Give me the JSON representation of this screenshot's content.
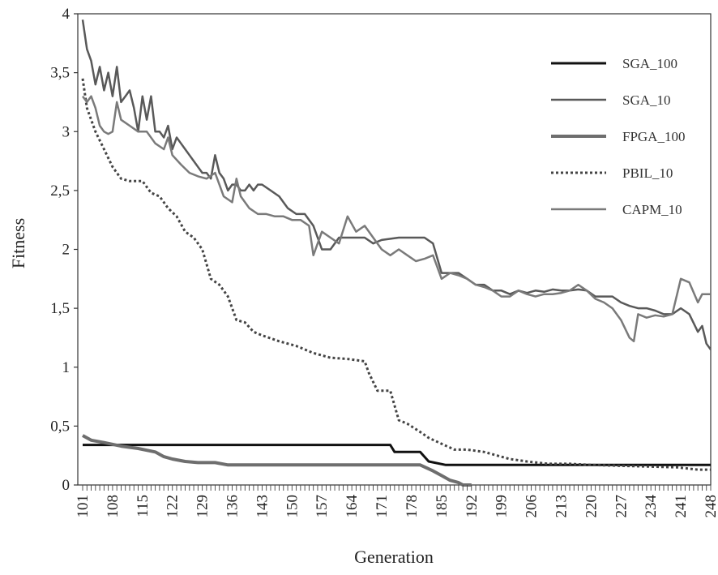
{
  "chart_data": {
    "type": "line",
    "xlabel": "Generation",
    "ylabel": "Fitness",
    "xlim": [
      101,
      248
    ],
    "ylim": [
      0,
      4
    ],
    "y_ticks": [
      0,
      0.5,
      1,
      1.5,
      2,
      2.5,
      3,
      3.5,
      4
    ],
    "y_tick_labels": [
      "0",
      "0,5",
      "1",
      "1,5",
      "2",
      "2,5",
      "3",
      "3,5",
      "4"
    ],
    "x_tick_labels": [
      "101",
      "108",
      "115",
      "122",
      "129",
      "136",
      "143",
      "150",
      "157",
      "164",
      "171",
      "178",
      "185",
      "192",
      "199",
      "206",
      "213",
      "220",
      "227",
      "234",
      "241",
      "248"
    ],
    "legend_position": "top-right",
    "grid": false,
    "series": [
      {
        "name": "SGA_100",
        "color": "#111111",
        "style": "solid",
        "width": 3,
        "points": [
          [
            101,
            0.34
          ],
          [
            173,
            0.34
          ],
          [
            174,
            0.28
          ],
          [
            180,
            0.28
          ],
          [
            182,
            0.2
          ],
          [
            186,
            0.17
          ],
          [
            191,
            0.17
          ],
          [
            248,
            0.17
          ]
        ]
      },
      {
        "name": "SGA_10",
        "color": "#595959",
        "style": "solid",
        "width": 2.5,
        "points": [
          [
            101,
            3.95
          ],
          [
            102,
            3.7
          ],
          [
            103,
            3.6
          ],
          [
            104,
            3.4
          ],
          [
            105,
            3.55
          ],
          [
            106,
            3.35
          ],
          [
            107,
            3.5
          ],
          [
            108,
            3.3
          ],
          [
            109,
            3.55
          ],
          [
            110,
            3.25
          ],
          [
            111,
            3.3
          ],
          [
            112,
            3.35
          ],
          [
            113,
            3.2
          ],
          [
            114,
            3.0
          ],
          [
            115,
            3.3
          ],
          [
            116,
            3.1
          ],
          [
            117,
            3.3
          ],
          [
            118,
            3.0
          ],
          [
            119,
            3.0
          ],
          [
            120,
            2.95
          ],
          [
            121,
            3.05
          ],
          [
            122,
            2.85
          ],
          [
            123,
            2.95
          ],
          [
            124,
            2.9
          ],
          [
            125,
            2.85
          ],
          [
            126,
            2.8
          ],
          [
            127,
            2.75
          ],
          [
            128,
            2.7
          ],
          [
            129,
            2.65
          ],
          [
            130,
            2.65
          ],
          [
            131,
            2.6
          ],
          [
            132,
            2.8
          ],
          [
            133,
            2.65
          ],
          [
            134,
            2.6
          ],
          [
            135,
            2.5
          ],
          [
            136,
            2.55
          ],
          [
            137,
            2.55
          ],
          [
            138,
            2.5
          ],
          [
            139,
            2.5
          ],
          [
            140,
            2.55
          ],
          [
            141,
            2.5
          ],
          [
            142,
            2.55
          ],
          [
            143,
            2.55
          ],
          [
            145,
            2.5
          ],
          [
            147,
            2.45
          ],
          [
            149,
            2.35
          ],
          [
            151,
            2.3
          ],
          [
            153,
            2.3
          ],
          [
            155,
            2.2
          ],
          [
            156,
            2.1
          ],
          [
            157,
            2.0
          ],
          [
            159,
            2.0
          ],
          [
            161,
            2.1
          ],
          [
            163,
            2.1
          ],
          [
            165,
            2.1
          ],
          [
            167,
            2.1
          ],
          [
            169,
            2.05
          ],
          [
            171,
            2.08
          ],
          [
            175,
            2.1
          ],
          [
            177,
            2.1
          ],
          [
            179,
            2.1
          ],
          [
            181,
            2.1
          ],
          [
            183,
            2.05
          ],
          [
            185,
            1.8
          ],
          [
            187,
            1.8
          ],
          [
            189,
            1.8
          ],
          [
            191,
            1.75
          ],
          [
            193,
            1.7
          ],
          [
            195,
            1.7
          ],
          [
            197,
            1.65
          ],
          [
            199,
            1.65
          ],
          [
            201,
            1.62
          ],
          [
            203,
            1.65
          ],
          [
            205,
            1.63
          ],
          [
            207,
            1.65
          ],
          [
            209,
            1.64
          ],
          [
            211,
            1.66
          ],
          [
            213,
            1.65
          ],
          [
            215,
            1.65
          ],
          [
            217,
            1.66
          ],
          [
            219,
            1.65
          ],
          [
            221,
            1.6
          ],
          [
            223,
            1.6
          ],
          [
            225,
            1.6
          ],
          [
            227,
            1.55
          ],
          [
            229,
            1.52
          ],
          [
            231,
            1.5
          ],
          [
            233,
            1.5
          ],
          [
            235,
            1.48
          ],
          [
            237,
            1.45
          ],
          [
            239,
            1.45
          ],
          [
            241,
            1.5
          ],
          [
            243,
            1.45
          ],
          [
            245,
            1.3
          ],
          [
            246,
            1.35
          ],
          [
            247,
            1.2
          ],
          [
            248,
            1.15
          ]
        ]
      },
      {
        "name": "FPGA_100",
        "color": "#6e6e6e",
        "style": "solid",
        "width": 4,
        "points": [
          [
            101,
            0.42
          ],
          [
            103,
            0.38
          ],
          [
            106,
            0.36
          ],
          [
            110,
            0.33
          ],
          [
            114,
            0.31
          ],
          [
            118,
            0.28
          ],
          [
            120,
            0.24
          ],
          [
            122,
            0.22
          ],
          [
            125,
            0.2
          ],
          [
            128,
            0.19
          ],
          [
            132,
            0.19
          ],
          [
            135,
            0.17
          ],
          [
            137,
            0.17
          ],
          [
            140,
            0.17
          ],
          [
            160,
            0.17
          ],
          [
            180,
            0.17
          ],
          [
            183,
            0.12
          ],
          [
            185,
            0.08
          ],
          [
            187,
            0.04
          ],
          [
            189,
            0.02
          ],
          [
            190,
            0.0
          ],
          [
            192,
            0.0
          ]
        ]
      },
      {
        "name": "PBIL_10",
        "color": "#444444",
        "style": "dotted",
        "width": 3,
        "points": [
          [
            101,
            3.45
          ],
          [
            102,
            3.2
          ],
          [
            104,
            3.0
          ],
          [
            106,
            2.85
          ],
          [
            108,
            2.7
          ],
          [
            110,
            2.6
          ],
          [
            112,
            2.58
          ],
          [
            115,
            2.58
          ],
          [
            117,
            2.48
          ],
          [
            119,
            2.45
          ],
          [
            121,
            2.35
          ],
          [
            123,
            2.28
          ],
          [
            125,
            2.15
          ],
          [
            127,
            2.1
          ],
          [
            129,
            2.0
          ],
          [
            131,
            1.75
          ],
          [
            133,
            1.7
          ],
          [
            135,
            1.6
          ],
          [
            137,
            1.4
          ],
          [
            139,
            1.38
          ],
          [
            141,
            1.3
          ],
          [
            143,
            1.27
          ],
          [
            147,
            1.22
          ],
          [
            151,
            1.18
          ],
          [
            155,
            1.12
          ],
          [
            159,
            1.08
          ],
          [
            163,
            1.07
          ],
          [
            167,
            1.05
          ],
          [
            168,
            0.95
          ],
          [
            170,
            0.8
          ],
          [
            173,
            0.8
          ],
          [
            175,
            0.55
          ],
          [
            177,
            0.52
          ],
          [
            180,
            0.45
          ],
          [
            182,
            0.4
          ],
          [
            185,
            0.35
          ],
          [
            188,
            0.3
          ],
          [
            191,
            0.3
          ],
          [
            195,
            0.28
          ],
          [
            198,
            0.25
          ],
          [
            201,
            0.22
          ],
          [
            205,
            0.2
          ],
          [
            210,
            0.18
          ],
          [
            215,
            0.18
          ],
          [
            220,
            0.17
          ],
          [
            230,
            0.16
          ],
          [
            240,
            0.15
          ],
          [
            245,
            0.13
          ],
          [
            248,
            0.13
          ]
        ]
      },
      {
        "name": "CAPM_10",
        "color": "#7a7a7a",
        "style": "solid",
        "width": 2.5,
        "points": [
          [
            101,
            3.3
          ],
          [
            102,
            3.25
          ],
          [
            103,
            3.3
          ],
          [
            104,
            3.2
          ],
          [
            105,
            3.05
          ],
          [
            106,
            3.0
          ],
          [
            107,
            2.98
          ],
          [
            108,
            3.0
          ],
          [
            109,
            3.25
          ],
          [
            110,
            3.1
          ],
          [
            112,
            3.05
          ],
          [
            114,
            3.0
          ],
          [
            116,
            3.0
          ],
          [
            118,
            2.9
          ],
          [
            120,
            2.85
          ],
          [
            121,
            2.95
          ],
          [
            122,
            2.8
          ],
          [
            124,
            2.72
          ],
          [
            126,
            2.65
          ],
          [
            128,
            2.62
          ],
          [
            130,
            2.6
          ],
          [
            132,
            2.65
          ],
          [
            134,
            2.45
          ],
          [
            136,
            2.4
          ],
          [
            137,
            2.6
          ],
          [
            138,
            2.45
          ],
          [
            140,
            2.35
          ],
          [
            142,
            2.3
          ],
          [
            144,
            2.3
          ],
          [
            146,
            2.28
          ],
          [
            148,
            2.28
          ],
          [
            150,
            2.25
          ],
          [
            152,
            2.25
          ],
          [
            154,
            2.2
          ],
          [
            155,
            1.95
          ],
          [
            157,
            2.15
          ],
          [
            159,
            2.1
          ],
          [
            161,
            2.05
          ],
          [
            163,
            2.28
          ],
          [
            165,
            2.15
          ],
          [
            167,
            2.2
          ],
          [
            169,
            2.1
          ],
          [
            171,
            2.0
          ],
          [
            173,
            1.95
          ],
          [
            175,
            2.0
          ],
          [
            177,
            1.95
          ],
          [
            179,
            1.9
          ],
          [
            181,
            1.92
          ],
          [
            183,
            1.95
          ],
          [
            185,
            1.75
          ],
          [
            187,
            1.8
          ],
          [
            189,
            1.78
          ],
          [
            191,
            1.75
          ],
          [
            193,
            1.7
          ],
          [
            195,
            1.68
          ],
          [
            197,
            1.65
          ],
          [
            199,
            1.6
          ],
          [
            201,
            1.6
          ],
          [
            203,
            1.65
          ],
          [
            205,
            1.62
          ],
          [
            207,
            1.6
          ],
          [
            209,
            1.62
          ],
          [
            211,
            1.62
          ],
          [
            213,
            1.63
          ],
          [
            215,
            1.65
          ],
          [
            217,
            1.7
          ],
          [
            219,
            1.65
          ],
          [
            221,
            1.58
          ],
          [
            223,
            1.55
          ],
          [
            225,
            1.5
          ],
          [
            227,
            1.4
          ],
          [
            229,
            1.25
          ],
          [
            230,
            1.22
          ],
          [
            231,
            1.45
          ],
          [
            233,
            1.42
          ],
          [
            235,
            1.44
          ],
          [
            237,
            1.43
          ],
          [
            239,
            1.45
          ],
          [
            241,
            1.75
          ],
          [
            243,
            1.72
          ],
          [
            245,
            1.55
          ],
          [
            246,
            1.62
          ],
          [
            248,
            1.62
          ]
        ]
      }
    ]
  }
}
